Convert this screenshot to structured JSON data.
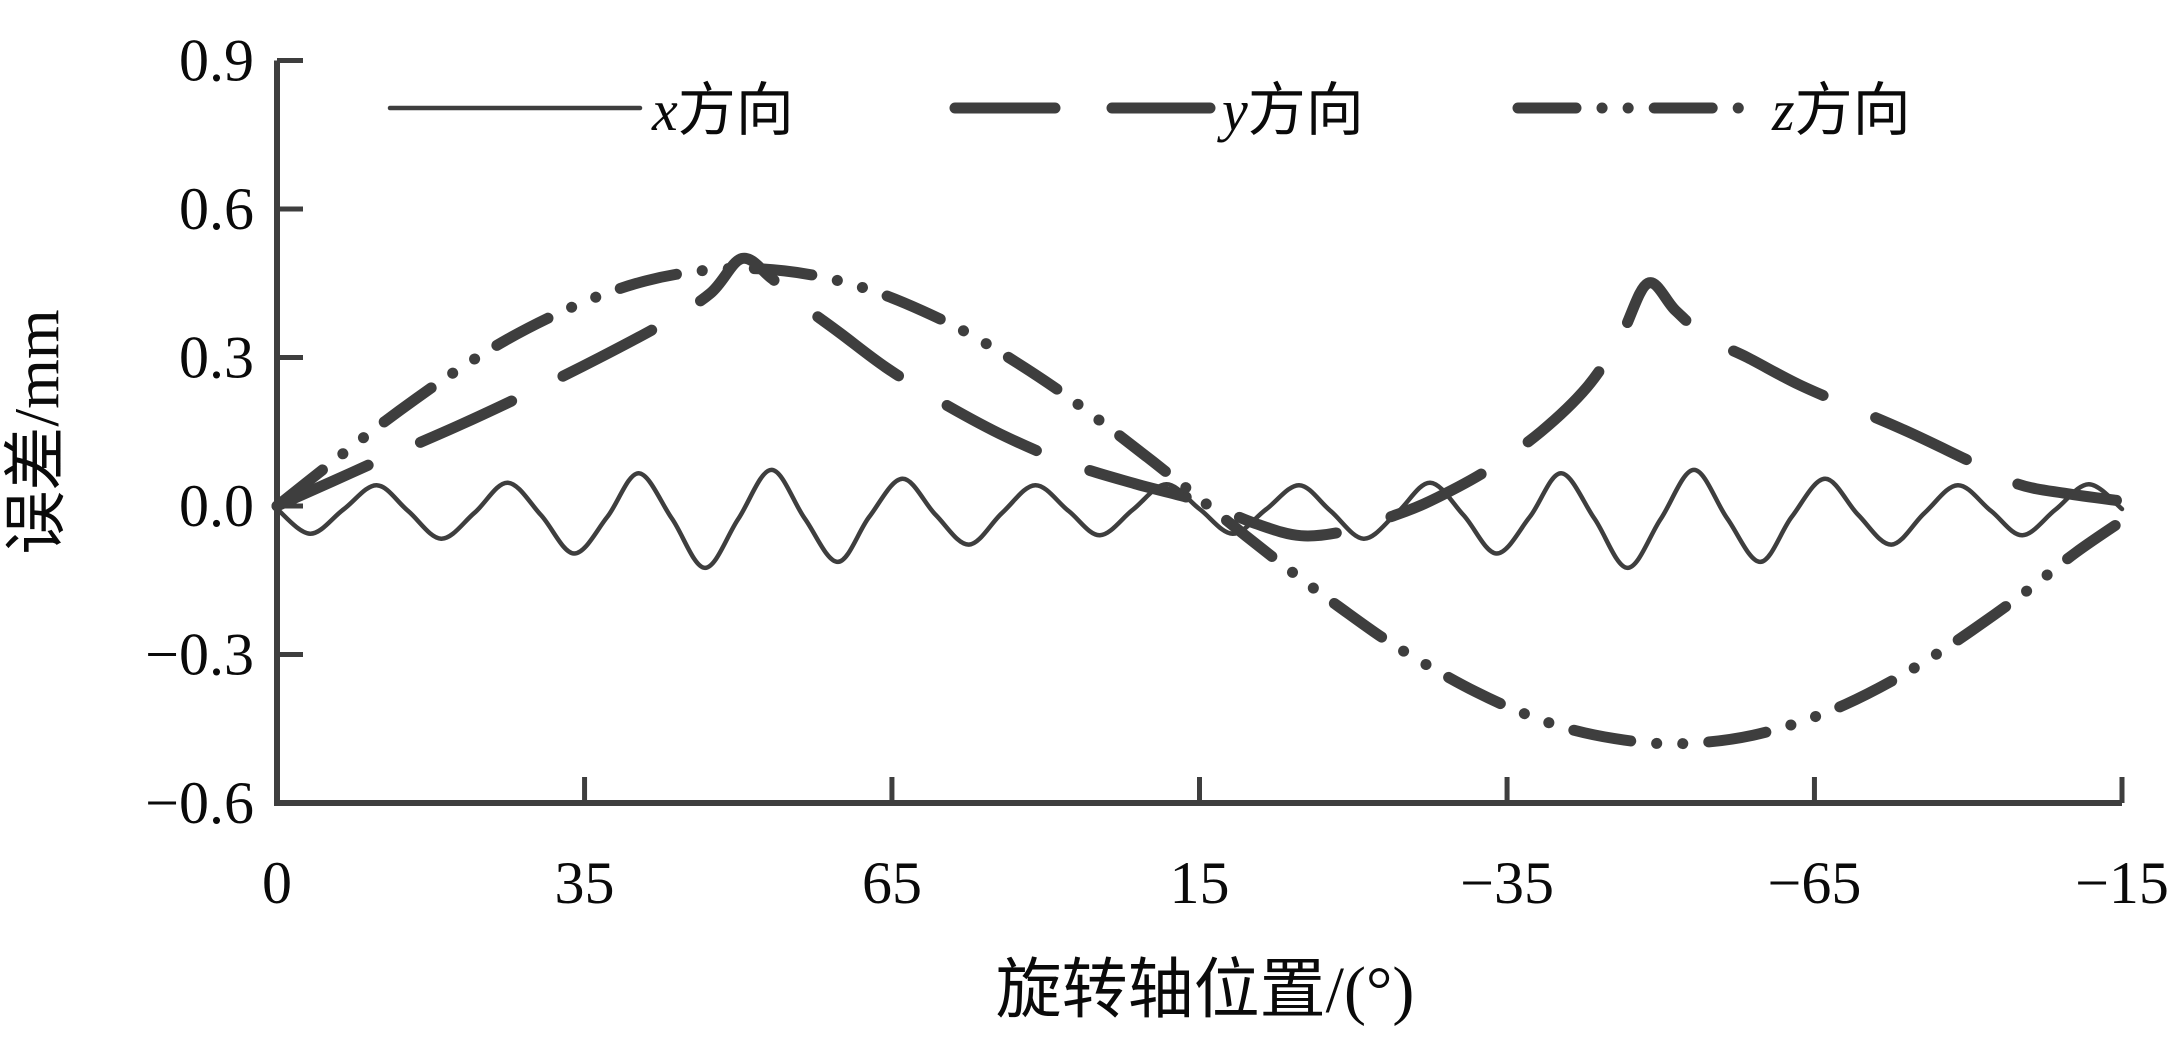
{
  "figure": {
    "background": "#ffffff",
    "ink_color": "#3e3e3e",
    "label_color": "#0a0a0a"
  },
  "chart_data": {
    "type": "line",
    "title": "",
    "xlabel": "旋转轴位置/(°)",
    "ylabel": "误差/mm",
    "ylim": [
      -0.6,
      0.9
    ],
    "grid": false,
    "legend_position": "top-center-inside",
    "x_axis": {
      "note": "x coordinates of series points are normalized position u (0..1) along the axis; tick labels show rotary-axis position in degrees (non-monotonic sweep)",
      "ticks": [
        {
          "u": 0.0,
          "label": "0"
        },
        {
          "u": 0.1667,
          "label": "35"
        },
        {
          "u": 0.3333,
          "label": "65"
        },
        {
          "u": 0.5,
          "label": "15"
        },
        {
          "u": 0.6667,
          "label": "−35"
        },
        {
          "u": 0.8333,
          "label": "−65"
        },
        {
          "u": 1.0,
          "label": "−15"
        }
      ]
    },
    "y_axis": {
      "ticks": [
        {
          "value": 0.9,
          "label": "0.9",
          "mark": true
        },
        {
          "value": 0.6,
          "label": "0.6",
          "mark": true
        },
        {
          "value": 0.3,
          "label": "0.3",
          "mark": true
        },
        {
          "value": 0.0,
          "label": "0.0",
          "mark": true
        },
        {
          "value": -0.3,
          "label": "−0.3",
          "mark": true
        },
        {
          "value": -0.6,
          "label": "−0.6",
          "mark": false
        }
      ]
    },
    "series": [
      {
        "name": "x方向",
        "letter": "x",
        "suffix": "方向",
        "style": "solid",
        "width": 4.5,
        "dash": [],
        "points": [
          [
            0,
            -0.006
          ],
          [
            0.018,
            -0.056
          ],
          [
            0.036,
            -0.007
          ],
          [
            0.054,
            0.042
          ],
          [
            0.071,
            -0.01
          ],
          [
            0.089,
            -0.066
          ],
          [
            0.107,
            -0.014
          ],
          [
            0.125,
            0.047
          ],
          [
            0.143,
            -0.018
          ],
          [
            0.161,
            -0.096
          ],
          [
            0.179,
            -0.022
          ],
          [
            0.196,
            0.066
          ],
          [
            0.214,
            -0.025
          ],
          [
            0.232,
            -0.125
          ],
          [
            0.25,
            -0.026
          ],
          [
            0.268,
            0.073
          ],
          [
            0.286,
            -0.025
          ],
          [
            0.304,
            -0.113
          ],
          [
            0.321,
            -0.022
          ],
          [
            0.339,
            0.055
          ],
          [
            0.357,
            -0.018
          ],
          [
            0.375,
            -0.078
          ],
          [
            0.393,
            -0.014
          ],
          [
            0.411,
            0.042
          ],
          [
            0.429,
            -0.01
          ],
          [
            0.446,
            -0.059
          ],
          [
            0.464,
            -0.007
          ],
          [
            0.482,
            0.044
          ],
          [
            0.5,
            -0.006
          ],
          [
            0.518,
            -0.056
          ],
          [
            0.536,
            -0.007
          ],
          [
            0.554,
            0.042
          ],
          [
            0.571,
            -0.01
          ],
          [
            0.589,
            -0.066
          ],
          [
            0.607,
            -0.014
          ],
          [
            0.625,
            0.047
          ],
          [
            0.643,
            -0.018
          ],
          [
            0.661,
            -0.096
          ],
          [
            0.679,
            -0.022
          ],
          [
            0.696,
            0.066
          ],
          [
            0.714,
            -0.025
          ],
          [
            0.732,
            -0.125
          ],
          [
            0.75,
            -0.026
          ],
          [
            0.768,
            0.073
          ],
          [
            0.786,
            -0.025
          ],
          [
            0.804,
            -0.113
          ],
          [
            0.821,
            -0.022
          ],
          [
            0.839,
            0.055
          ],
          [
            0.857,
            -0.018
          ],
          [
            0.875,
            -0.078
          ],
          [
            0.893,
            -0.014
          ],
          [
            0.911,
            0.042
          ],
          [
            0.929,
            -0.01
          ],
          [
            0.946,
            -0.059
          ],
          [
            0.964,
            -0.007
          ],
          [
            0.982,
            0.044
          ],
          [
            1,
            -0.006
          ]
        ]
      },
      {
        "name": "y方向",
        "letter": "y",
        "suffix": "方向",
        "style": "dashed",
        "width": 11,
        "dash": [
          100,
          57
        ],
        "points": [
          [
            0,
            0
          ],
          [
            0.03,
            0.05
          ],
          [
            0.06,
            0.1
          ],
          [
            0.1,
            0.165
          ],
          [
            0.14,
            0.235
          ],
          [
            0.175,
            0.3
          ],
          [
            0.21,
            0.37
          ],
          [
            0.235,
            0.43
          ],
          [
            0.252,
            0.5
          ],
          [
            0.268,
            0.46
          ],
          [
            0.285,
            0.405
          ],
          [
            0.305,
            0.35
          ],
          [
            0.33,
            0.28
          ],
          [
            0.36,
            0.21
          ],
          [
            0.395,
            0.14
          ],
          [
            0.43,
            0.085
          ],
          [
            0.465,
            0.045
          ],
          [
            0.5,
            0.01
          ],
          [
            0.53,
            -0.035
          ],
          [
            0.555,
            -0.06
          ],
          [
            0.58,
            -0.05
          ],
          [
            0.605,
            -0.02
          ],
          [
            0.625,
            0.01
          ],
          [
            0.655,
            0.07
          ],
          [
            0.685,
            0.15
          ],
          [
            0.71,
            0.24
          ],
          [
            0.728,
            0.34
          ],
          [
            0.743,
            0.45
          ],
          [
            0.758,
            0.395
          ],
          [
            0.775,
            0.34
          ],
          [
            0.797,
            0.3
          ],
          [
            0.825,
            0.245
          ],
          [
            0.856,
            0.195
          ],
          [
            0.884,
            0.15
          ],
          [
            0.915,
            0.095
          ],
          [
            0.943,
            0.045
          ],
          [
            0.97,
            0.025
          ],
          [
            1,
            0.01
          ]
        ]
      },
      {
        "name": "z方向",
        "letter": "z",
        "suffix": "方向",
        "style": "dash-dot-dot",
        "width": 11,
        "dash": [
          58,
          26,
          0.1,
          26,
          0.1,
          26
        ],
        "points": [
          [
            0,
            0
          ],
          [
            0.025,
            0.074
          ],
          [
            0.05,
            0.147
          ],
          [
            0.075,
            0.216
          ],
          [
            0.1,
            0.28
          ],
          [
            0.125,
            0.337
          ],
          [
            0.15,
            0.385
          ],
          [
            0.175,
            0.425
          ],
          [
            0.2,
            0.455
          ],
          [
            0.225,
            0.473
          ],
          [
            0.25,
            0.48
          ],
          [
            0.275,
            0.475
          ],
          [
            0.3,
            0.459
          ],
          [
            0.325,
            0.432
          ],
          [
            0.35,
            0.394
          ],
          [
            0.375,
            0.348
          ],
          [
            0.4,
            0.292
          ],
          [
            0.425,
            0.23
          ],
          [
            0.45,
            0.161
          ],
          [
            0.475,
            0.089
          ],
          [
            0.5,
            0.015
          ],
          [
            0.525,
            -0.06
          ],
          [
            0.55,
            -0.133
          ],
          [
            0.575,
            -0.202
          ],
          [
            0.6,
            -0.268
          ],
          [
            0.625,
            -0.325
          ],
          [
            0.65,
            -0.376
          ],
          [
            0.675,
            -0.418
          ],
          [
            0.7,
            -0.45
          ],
          [
            0.725,
            -0.47
          ],
          [
            0.75,
            -0.48
          ],
          [
            0.775,
            -0.477
          ],
          [
            0.8,
            -0.463
          ],
          [
            0.825,
            -0.437
          ],
          [
            0.85,
            -0.401
          ],
          [
            0.875,
            -0.354
          ],
          [
            0.9,
            -0.298
          ],
          [
            0.925,
            -0.235
          ],
          [
            0.95,
            -0.167
          ],
          [
            0.975,
            -0.094
          ],
          [
            1,
            -0.03
          ]
        ]
      }
    ]
  }
}
